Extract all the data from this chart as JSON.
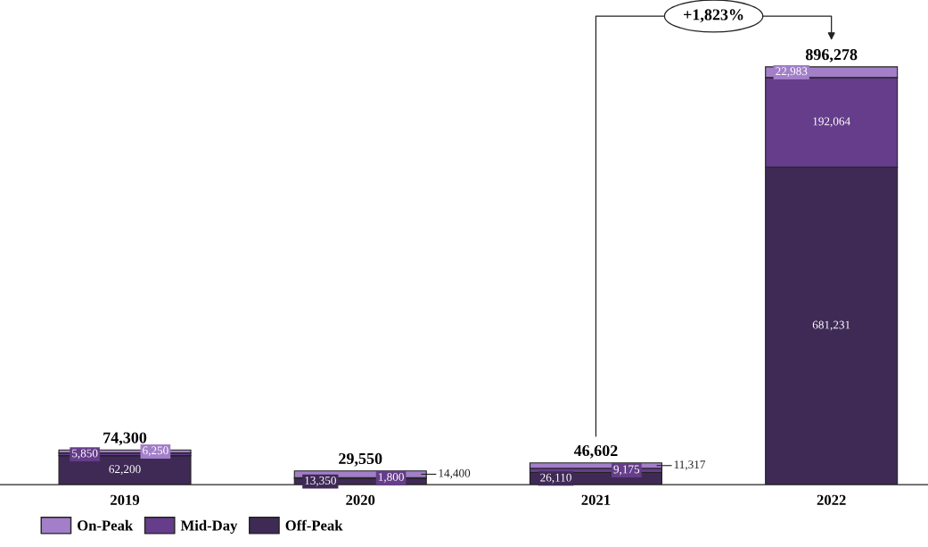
{
  "chart_data": {
    "type": "bar",
    "stacked": true,
    "categories": [
      "2019",
      "2020",
      "2021",
      "2022"
    ],
    "series": [
      {
        "name": "Off-Peak",
        "color": "#3f2a56",
        "values": [
          62200,
          13350,
          26110,
          681231
        ],
        "value_labels": [
          "62,200",
          "13,350",
          "26,110",
          "681,231"
        ]
      },
      {
        "name": "Mid-Day",
        "color": "#653d8a",
        "values": [
          5850,
          1800,
          9175,
          192064
        ],
        "value_labels": [
          "5,850",
          "1,800",
          "9,175",
          "192,064"
        ]
      },
      {
        "name": "On-Peak",
        "color": "#a27fc8",
        "values": [
          6250,
          14400,
          11317,
          22983
        ],
        "value_labels": [
          "6,250",
          "14,400",
          "11,317",
          "22,983"
        ]
      }
    ],
    "totals": [
      "74,300",
      "29,550",
      "46,602",
      "896,278"
    ],
    "annotations": [
      "+1,823%"
    ],
    "legend": "bottom left"
  }
}
